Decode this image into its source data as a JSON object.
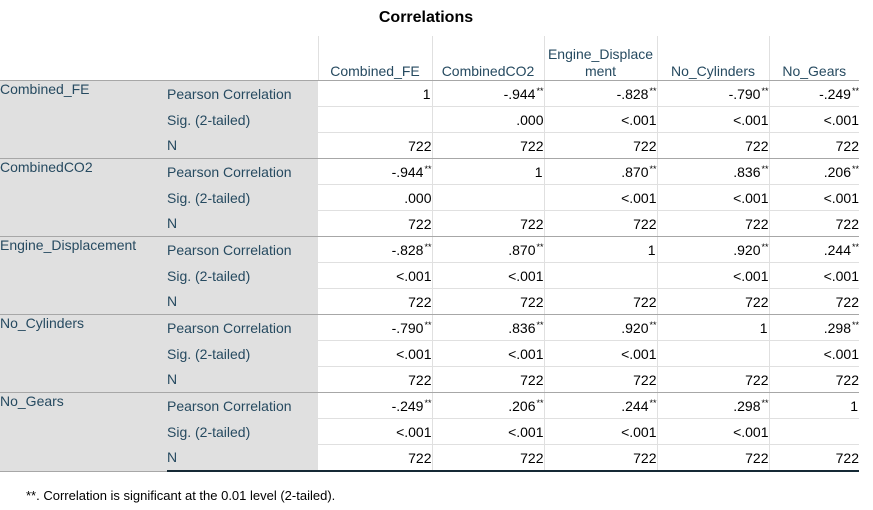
{
  "title": "Correlations",
  "columns": [
    "Combined_FE",
    "CombinedCO2",
    "Engine_Displacement",
    "No_Cylinders",
    "No_Gears"
  ],
  "stat_labels": [
    "Pearson Correlation",
    "Sig. (2-tailed)",
    "N"
  ],
  "sig_marker": "**",
  "rows": [
    {
      "var": "Combined_FE",
      "pearson": [
        {
          "v": "1",
          "s": ""
        },
        {
          "v": "-.944",
          "s": "**"
        },
        {
          "v": "-.828",
          "s": "**"
        },
        {
          "v": "-.790",
          "s": "**"
        },
        {
          "v": "-.249",
          "s": "**"
        }
      ],
      "sig": [
        "",
        ".000",
        "<.001",
        "<.001",
        "<.001"
      ],
      "n": [
        "722",
        "722",
        "722",
        "722",
        "722"
      ]
    },
    {
      "var": "CombinedCO2",
      "pearson": [
        {
          "v": "-.944",
          "s": "**"
        },
        {
          "v": "1",
          "s": ""
        },
        {
          "v": ".870",
          "s": "**"
        },
        {
          "v": ".836",
          "s": "**"
        },
        {
          "v": ".206",
          "s": "**"
        }
      ],
      "sig": [
        ".000",
        "",
        "<.001",
        "<.001",
        "<.001"
      ],
      "n": [
        "722",
        "722",
        "722",
        "722",
        "722"
      ]
    },
    {
      "var": "Engine_Displacement",
      "pearson": [
        {
          "v": "-.828",
          "s": "**"
        },
        {
          "v": ".870",
          "s": "**"
        },
        {
          "v": "1",
          "s": ""
        },
        {
          "v": ".920",
          "s": "**"
        },
        {
          "v": ".244",
          "s": "**"
        }
      ],
      "sig": [
        "<.001",
        "<.001",
        "",
        "<.001",
        "<.001"
      ],
      "n": [
        "722",
        "722",
        "722",
        "722",
        "722"
      ]
    },
    {
      "var": "No_Cylinders",
      "pearson": [
        {
          "v": "-.790",
          "s": "**"
        },
        {
          "v": ".836",
          "s": "**"
        },
        {
          "v": ".920",
          "s": "**"
        },
        {
          "v": "1",
          "s": ""
        },
        {
          "v": ".298",
          "s": "**"
        }
      ],
      "sig": [
        "<.001",
        "<.001",
        "<.001",
        "",
        "<.001"
      ],
      "n": [
        "722",
        "722",
        "722",
        "722",
        "722"
      ]
    },
    {
      "var": "No_Gears",
      "pearson": [
        {
          "v": "-.249",
          "s": "**"
        },
        {
          "v": ".206",
          "s": "**"
        },
        {
          "v": ".244",
          "s": "**"
        },
        {
          "v": ".298",
          "s": "**"
        },
        {
          "v": "1",
          "s": ""
        }
      ],
      "sig": [
        "<.001",
        "<.001",
        "<.001",
        "<.001",
        ""
      ],
      "n": [
        "722",
        "722",
        "722",
        "722",
        "722"
      ]
    }
  ],
  "footnote": "**. Correlation is significant at the 0.01 level (2-tailed)."
}
